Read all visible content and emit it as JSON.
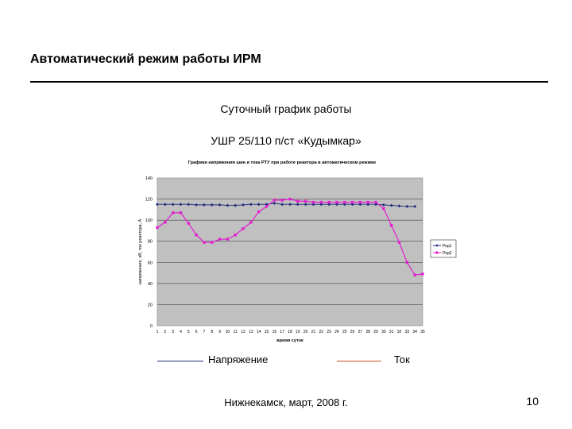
{
  "slide": {
    "title": "Автоматический режим  работы ИРМ",
    "subtitle_1": "Суточный график работы",
    "subtitle_2": "УШР 25/110 п/ст «Кудымкар»",
    "footer": "Нижнекамск, март, 2008 г.",
    "page_number": "10"
  },
  "legend": {
    "voltage_label": "Напряжение",
    "current_label": "Ток",
    "voltage_color": "#1f2a7a",
    "current_color": "#c0501e"
  },
  "chart_data": {
    "type": "line",
    "title": "Графики напряжения шин и тока РТУ при работе реактора в автоматическом режиме",
    "xlabel": "время суток",
    "ylabel": "напряжение, кВ, ток реактора, А",
    "x": [
      1,
      2,
      3,
      4,
      5,
      6,
      7,
      8,
      9,
      10,
      11,
      12,
      13,
      14,
      15,
      16,
      17,
      18,
      19,
      20,
      21,
      22,
      23,
      24,
      25,
      26,
      27,
      28,
      29,
      30,
      31,
      32,
      33,
      34,
      35
    ],
    "xlim": [
      1,
      35
    ],
    "ylim": [
      0,
      140
    ],
    "yticks": [
      0,
      20,
      40,
      60,
      80,
      100,
      120,
      140
    ],
    "grid": true,
    "background": "#c0c0c0",
    "series": [
      {
        "name": "Ряд1",
        "color": "#1f2a7a",
        "marker": "diamond",
        "points": [
          [
            1,
            115
          ],
          [
            2,
            115
          ],
          [
            3,
            115
          ],
          [
            4,
            115
          ],
          [
            5,
            115
          ],
          [
            6,
            114.5
          ],
          [
            7,
            114.5
          ],
          [
            8,
            114.5
          ],
          [
            9,
            114.5
          ],
          [
            10,
            114
          ],
          [
            11,
            114
          ],
          [
            12,
            114.5
          ],
          [
            13,
            115
          ],
          [
            14,
            115
          ],
          [
            15,
            115
          ],
          [
            16,
            116
          ],
          [
            17,
            115
          ],
          [
            18,
            115
          ],
          [
            19,
            115
          ],
          [
            20,
            115
          ],
          [
            21,
            115
          ],
          [
            22,
            115
          ],
          [
            23,
            115
          ],
          [
            24,
            115
          ],
          [
            25,
            115
          ],
          [
            26,
            115
          ],
          [
            27,
            115
          ],
          [
            28,
            115
          ],
          [
            29,
            115
          ],
          [
            30,
            114.5
          ],
          [
            31,
            114
          ],
          [
            32,
            113.5
          ],
          [
            33,
            113
          ],
          [
            34,
            113
          ]
        ]
      },
      {
        "name": "Ряд2",
        "color": "#e020d0",
        "marker": "square",
        "points": [
          [
            1,
            93
          ],
          [
            2,
            98
          ],
          [
            3,
            107
          ],
          [
            4,
            107
          ],
          [
            5,
            97
          ],
          [
            6,
            86
          ],
          [
            7,
            79
          ],
          [
            8,
            79
          ],
          [
            9,
            82
          ],
          [
            10,
            82
          ],
          [
            11,
            86
          ],
          [
            12,
            92
          ],
          [
            13,
            98
          ],
          [
            14,
            108
          ],
          [
            15,
            113
          ],
          [
            16,
            119
          ],
          [
            17,
            119
          ],
          [
            18,
            120
          ],
          [
            19,
            118
          ],
          [
            20,
            118
          ],
          [
            21,
            117
          ],
          [
            22,
            117
          ],
          [
            23,
            117
          ],
          [
            24,
            117
          ],
          [
            25,
            117
          ],
          [
            26,
            117
          ],
          [
            27,
            117
          ],
          [
            28,
            117
          ],
          [
            29,
            117
          ],
          [
            30,
            111
          ],
          [
            31,
            95
          ],
          [
            32,
            79
          ],
          [
            33,
            60
          ],
          [
            34,
            48
          ],
          [
            35,
            49
          ]
        ]
      }
    ]
  }
}
